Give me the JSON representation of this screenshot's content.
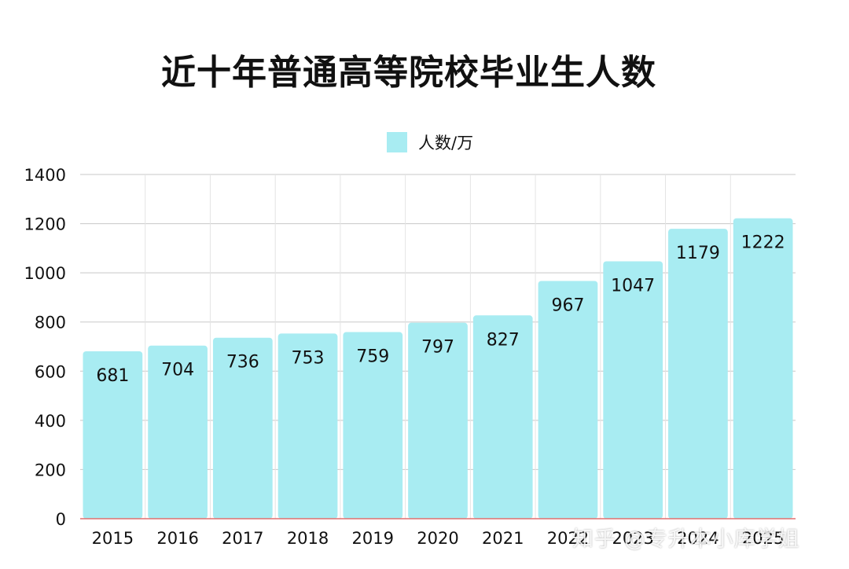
{
  "chart_data": {
    "type": "bar",
    "title": "近十年普通高等院校毕业生人数",
    "categories": [
      "2015",
      "2016",
      "2017",
      "2018",
      "2019",
      "2020",
      "2021",
      "2022",
      "2023",
      "2024",
      "2025"
    ],
    "series": [
      {
        "name": "人数/万",
        "values": [
          681,
          704,
          736,
          753,
          759,
          797,
          827,
          967,
          1047,
          1179,
          1222
        ]
      }
    ],
    "ylim": [
      0,
      1400
    ],
    "yticks": [
      0,
      200,
      400,
      600,
      800,
      1000,
      1200,
      1400
    ],
    "xlabel": "",
    "ylabel": "",
    "grid": true,
    "legend_position": "top",
    "bar_color": "#a8ecf2",
    "grid_color": "#c8c8c8",
    "zero_line_color": "#e07070"
  },
  "watermark": "知乎 @专升本小库学姐"
}
